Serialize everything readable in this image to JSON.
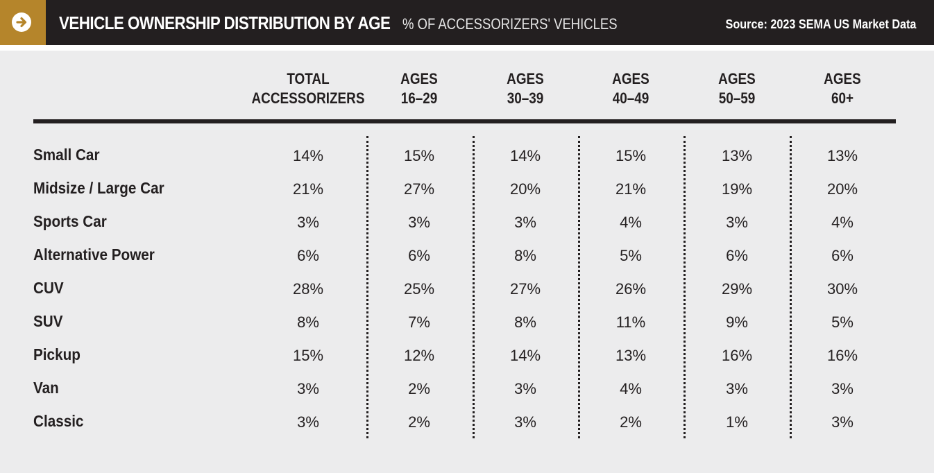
{
  "header": {
    "title": "VEHICLE OWNERSHIP DISTRIBUTION BY AGE",
    "subtitle": "% OF ACCESSORIZERS' VEHICLES",
    "source": "Source: 2023 SEMA US Market Data",
    "icon": "arrow-right-circle-icon"
  },
  "colors": {
    "accent": "#b5852b",
    "header_bg": "#231f20",
    "panel_bg": "#ececed",
    "text": "#231f20"
  },
  "chart_data": {
    "type": "table",
    "title": "VEHICLE OWNERSHIP DISTRIBUTION BY AGE",
    "subtitle": "% OF ACCESSORIZERS' VEHICLES",
    "source": "Source: 2023 SEMA US Market Data",
    "columns": [
      {
        "line1": "TOTAL",
        "line2": "ACCESSORIZERS"
      },
      {
        "line1": "AGES",
        "line2": "16–29"
      },
      {
        "line1": "AGES",
        "line2": "30–39"
      },
      {
        "line1": "AGES",
        "line2": "40–49"
      },
      {
        "line1": "AGES",
        "line2": "50–59"
      },
      {
        "line1": "AGES",
        "line2": "60+"
      }
    ],
    "rows": [
      {
        "label": "Small Car",
        "values": [
          "14%",
          "15%",
          "14%",
          "15%",
          "13%",
          "13%"
        ]
      },
      {
        "label": "Midsize / Large Car",
        "values": [
          "21%",
          "27%",
          "20%",
          "21%",
          "19%",
          "20%"
        ]
      },
      {
        "label": "Sports Car",
        "values": [
          "3%",
          "3%",
          "3%",
          "4%",
          "3%",
          "4%"
        ]
      },
      {
        "label": "Alternative Power",
        "values": [
          "6%",
          "6%",
          "8%",
          "5%",
          "6%",
          "6%"
        ]
      },
      {
        "label": "CUV",
        "values": [
          "28%",
          "25%",
          "27%",
          "26%",
          "29%",
          "30%"
        ]
      },
      {
        "label": "SUV",
        "values": [
          "8%",
          "7%",
          "8%",
          "11%",
          "9%",
          "5%"
        ]
      },
      {
        "label": "Pickup",
        "values": [
          "15%",
          "12%",
          "14%",
          "13%",
          "16%",
          "16%"
        ]
      },
      {
        "label": "Van",
        "values": [
          "3%",
          "2%",
          "3%",
          "4%",
          "3%",
          "3%"
        ]
      },
      {
        "label": "Classic",
        "values": [
          "3%",
          "2%",
          "3%",
          "2%",
          "1%",
          "3%"
        ]
      }
    ]
  }
}
